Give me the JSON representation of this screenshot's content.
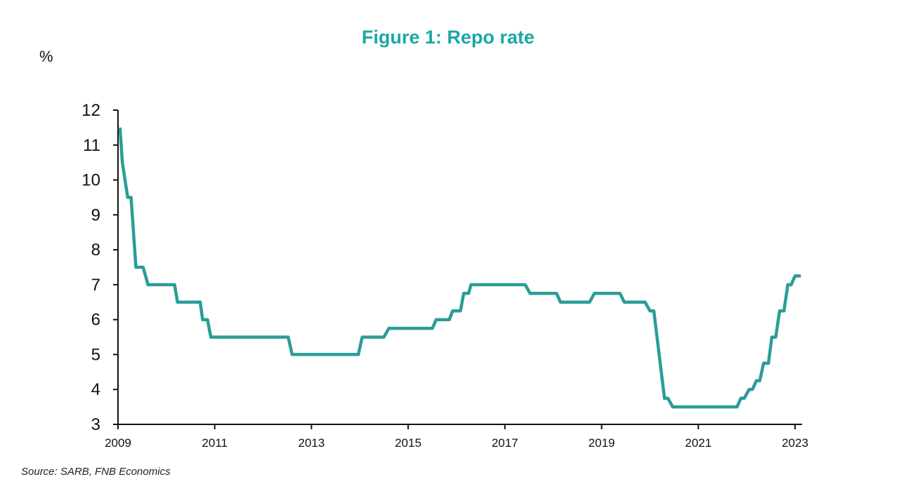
{
  "chart_data": {
    "type": "line",
    "title": "Figure 1: Repo rate",
    "unit_label": "%",
    "source": "Source: SARB, FNB Economics",
    "xlabel": "",
    "ylabel": "",
    "xlim": [
      2009.0,
      2023.0
    ],
    "ylim": [
      3,
      12
    ],
    "x_ticks": [
      2009,
      2011,
      2013,
      2015,
      2017,
      2019,
      2021,
      2023
    ],
    "y_ticks": [
      3,
      4,
      5,
      6,
      7,
      8,
      9,
      10,
      11,
      12
    ],
    "grid": false,
    "line_color": "#2a9d96",
    "title_color": "#1aa8a4",
    "series": [
      {
        "x": [
          2009.04,
          2009.09,
          2009.2,
          2009.27,
          2009.37,
          2009.52,
          2009.62,
          2010.17,
          2010.23,
          2010.7,
          2010.75,
          2010.85,
          2010.92,
          2012.52,
          2012.6,
          2013.97,
          2014.05,
          2014.5,
          2014.6,
          2015.5,
          2015.58,
          2015.85,
          2015.92,
          2016.08,
          2016.15,
          2016.25,
          2016.3,
          2017.42,
          2017.52,
          2018.07,
          2018.15,
          2018.75,
          2018.85,
          2019.38,
          2019.47,
          2019.9,
          2020.0,
          2020.08,
          2020.3,
          2020.37,
          2020.47,
          2020.6,
          2021.8,
          2021.88,
          2021.95,
          2022.05,
          2022.12,
          2022.2,
          2022.27,
          2022.35,
          2022.45,
          2022.52,
          2022.6,
          2022.68,
          2022.77,
          2022.85,
          2022.92,
          2023.0,
          2023.07,
          2023.12
        ],
        "values": [
          11.5,
          10.5,
          9.5,
          9.5,
          7.5,
          7.5,
          7.0,
          7.0,
          6.5,
          6.5,
          6.0,
          6.0,
          5.5,
          5.5,
          5.0,
          5.0,
          5.5,
          5.5,
          5.75,
          5.75,
          6.0,
          6.0,
          6.25,
          6.25,
          6.75,
          6.75,
          7.0,
          7.0,
          6.75,
          6.75,
          6.5,
          6.5,
          6.75,
          6.75,
          6.5,
          6.5,
          6.25,
          6.25,
          3.75,
          3.75,
          3.5,
          3.5,
          3.5,
          3.75,
          3.75,
          4.0,
          4.0,
          4.25,
          4.25,
          4.75,
          4.75,
          5.5,
          5.5,
          6.25,
          6.25,
          7.0,
          7.0,
          7.25,
          7.25,
          7.25
        ]
      }
    ]
  }
}
